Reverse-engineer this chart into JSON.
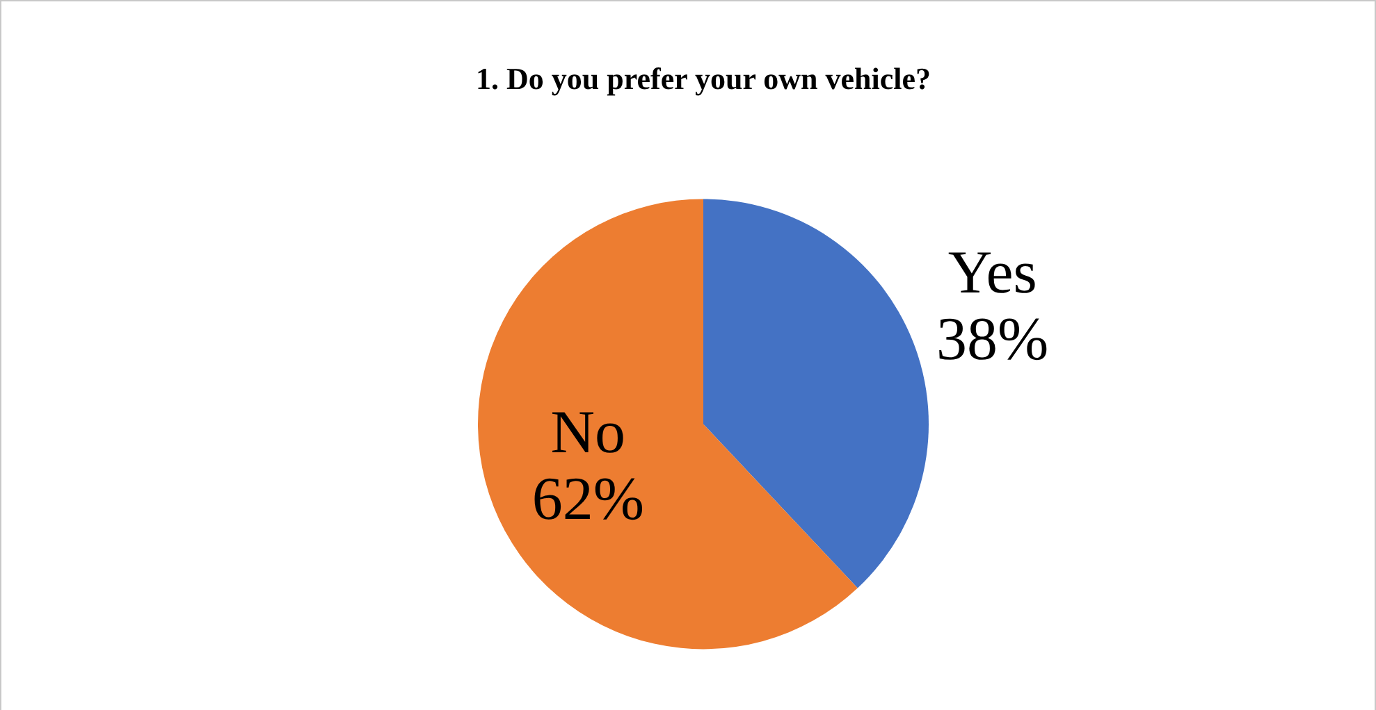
{
  "chart_data": {
    "type": "pie",
    "title": "1. Do you prefer your own vehicle?",
    "categories": [
      "Yes",
      "No"
    ],
    "values": [
      38,
      62
    ],
    "value_labels": [
      "38%",
      "62%"
    ],
    "colors": [
      "#4472c4",
      "#ed7d31"
    ],
    "legend": false
  }
}
